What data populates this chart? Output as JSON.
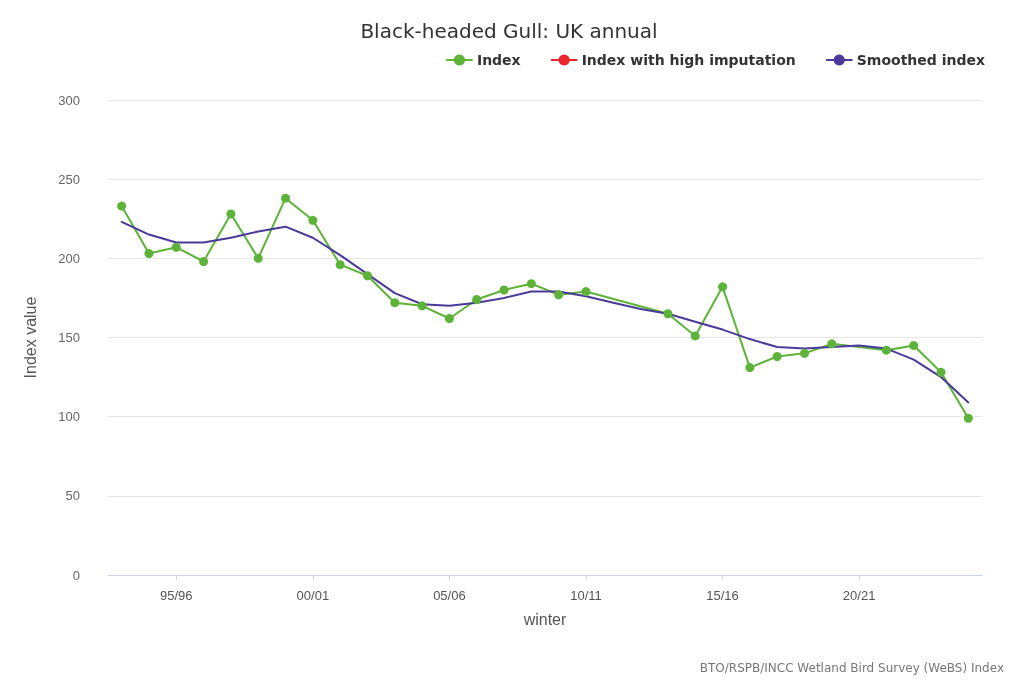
{
  "chart_data": {
    "type": "line",
    "title": "Black-headed Gull: UK annual",
    "xlabel": "winter",
    "ylabel": "Index value",
    "categories": [
      null,
      null,
      "95/96",
      null,
      null,
      null,
      null,
      "00/01",
      null,
      null,
      null,
      null,
      "05/06",
      null,
      null,
      null,
      null,
      "10/11",
      null,
      null,
      null,
      null,
      "15/16",
      null,
      null,
      null,
      null,
      "20/21",
      null,
      null,
      null,
      null
    ],
    "series": [
      {
        "name": "Index",
        "color": "#5cb338",
        "marker": "circle",
        "values": [
          233,
          203,
          207,
          198,
          228,
          200,
          238,
          224,
          196,
          189,
          172,
          170,
          162,
          174,
          180,
          184,
          177,
          179,
          null,
          null,
          165,
          151,
          182,
          131,
          138,
          140,
          146,
          null,
          142,
          145,
          128,
          99
        ]
      },
      {
        "name": "Index with high imputation",
        "color": "#e8262b",
        "marker": "circle",
        "values": [
          null,
          null,
          null,
          null,
          null,
          null,
          null,
          null,
          null,
          null,
          null,
          null,
          null,
          null,
          null,
          null,
          null,
          null,
          null,
          null,
          null,
          null,
          null,
          null,
          null,
          null,
          null,
          null,
          null,
          null,
          null,
          null
        ]
      },
      {
        "name": "Smoothed index",
        "color": "#4b3a9a",
        "marker": "none",
        "values": [
          223,
          215,
          210,
          210,
          213,
          217,
          220,
          213,
          202,
          190,
          178,
          171,
          170,
          172,
          175,
          179,
          179,
          176,
          172,
          168,
          165,
          160,
          155,
          149,
          144,
          143,
          144,
          145,
          143,
          136,
          125,
          109
        ]
      }
    ],
    "ylim": [
      0,
      300
    ],
    "yticks": [
      0,
      50,
      100,
      150,
      200,
      250,
      300
    ],
    "grid": "y",
    "legend": "top right",
    "annotations": [
      "BTO/RSPB/INCC Wetland Bird Survey (WeBS) Index"
    ]
  }
}
